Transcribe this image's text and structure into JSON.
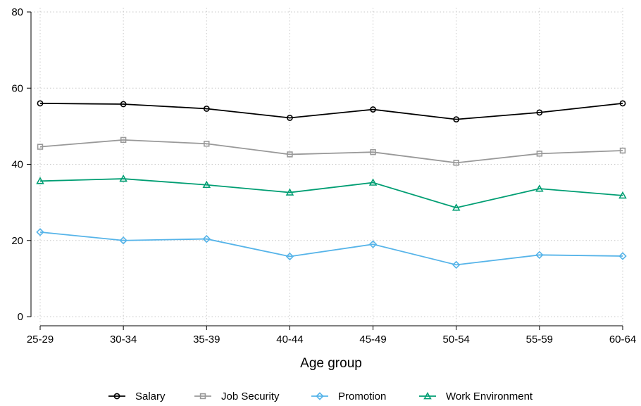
{
  "chart_data": {
    "type": "line",
    "title": "",
    "xlabel": "Age group",
    "ylabel": "",
    "categories": [
      "25-29",
      "30-34",
      "35-39",
      "40-44",
      "45-49",
      "50-54",
      "55-59",
      "60-64"
    ],
    "ylim": [
      0,
      80
    ],
    "yticks": [
      0,
      20,
      40,
      60,
      80
    ],
    "grid": true,
    "legend_position": "bottom",
    "series": [
      {
        "name": "Salary",
        "color": "#000000",
        "marker": "circle",
        "values": [
          56.0,
          55.8,
          54.6,
          52.2,
          54.4,
          51.8,
          53.6,
          56.0
        ]
      },
      {
        "name": "Job Security",
        "color": "#999999",
        "marker": "square",
        "values": [
          44.6,
          46.4,
          45.4,
          42.6,
          43.2,
          40.4,
          42.8,
          43.6
        ]
      },
      {
        "name": "Promotion",
        "color": "#56b4e9",
        "marker": "diamond",
        "values": [
          22.2,
          20.0,
          20.4,
          15.8,
          19.0,
          13.6,
          16.2,
          15.9
        ]
      },
      {
        "name": "Work Environment",
        "color": "#009e73",
        "marker": "triangle",
        "values": [
          35.6,
          36.2,
          34.6,
          32.6,
          35.2,
          28.6,
          33.6,
          31.8
        ]
      }
    ]
  }
}
